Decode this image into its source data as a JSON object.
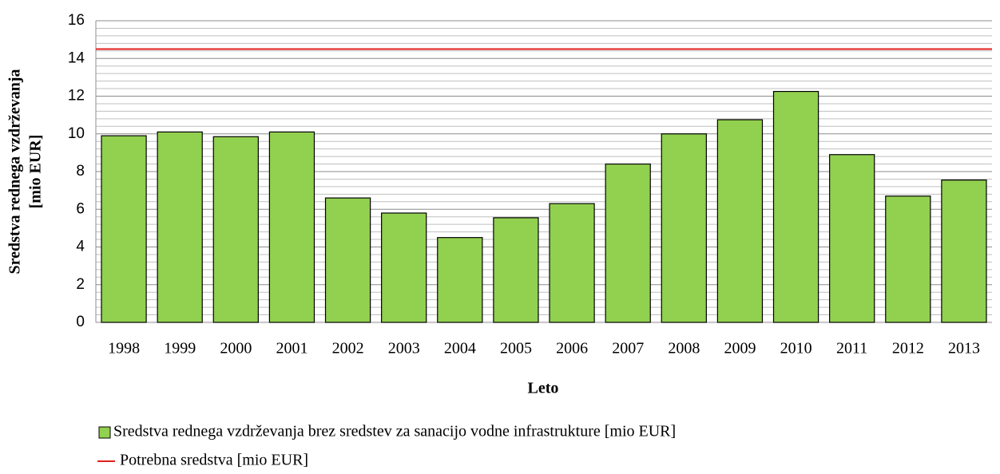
{
  "chart_data": {
    "type": "bar",
    "y_label": [
      "Sredstva rednega vzdrževanja",
      "[mio EUR]"
    ],
    "x_label": "Leto",
    "categories": [
      "1998",
      "1999",
      "2000",
      "2001",
      "2002",
      "2003",
      "2004",
      "2005",
      "2006",
      "2007",
      "2008",
      "2009",
      "2010",
      "2011",
      "2012",
      "2013"
    ],
    "series": [
      {
        "name": "Sredstva rednega vzdrževanja brez sredstev za sanacijo vodne infrastrukture [mio EUR]",
        "color": "#92d050",
        "values": [
          9.9,
          10.1,
          9.85,
          10.1,
          6.6,
          5.8,
          4.5,
          5.55,
          6.3,
          8.4,
          10.0,
          10.75,
          12.25,
          8.9,
          6.7,
          7.55
        ]
      }
    ],
    "reference_lines": [
      {
        "name": "Potrebna sredstva [mio EUR]",
        "color": "#e0201b",
        "value": 14.5
      }
    ],
    "ylim": [
      0,
      16
    ],
    "yticks": [
      0,
      2,
      4,
      6,
      8,
      10,
      12,
      14,
      16
    ],
    "minor_yticks": [
      0.4,
      0.8,
      1.2,
      1.6,
      2.4,
      2.8,
      3.2,
      3.6,
      4.4,
      4.8,
      5.2,
      5.6,
      6.4,
      6.8,
      7.2,
      7.6,
      8.4,
      8.8,
      9.2,
      9.6,
      10.4,
      10.8,
      11.2,
      11.6,
      12.4,
      12.8,
      13.2,
      13.6,
      14.4,
      14.8,
      15.2,
      15.6
    ],
    "grid": true
  }
}
